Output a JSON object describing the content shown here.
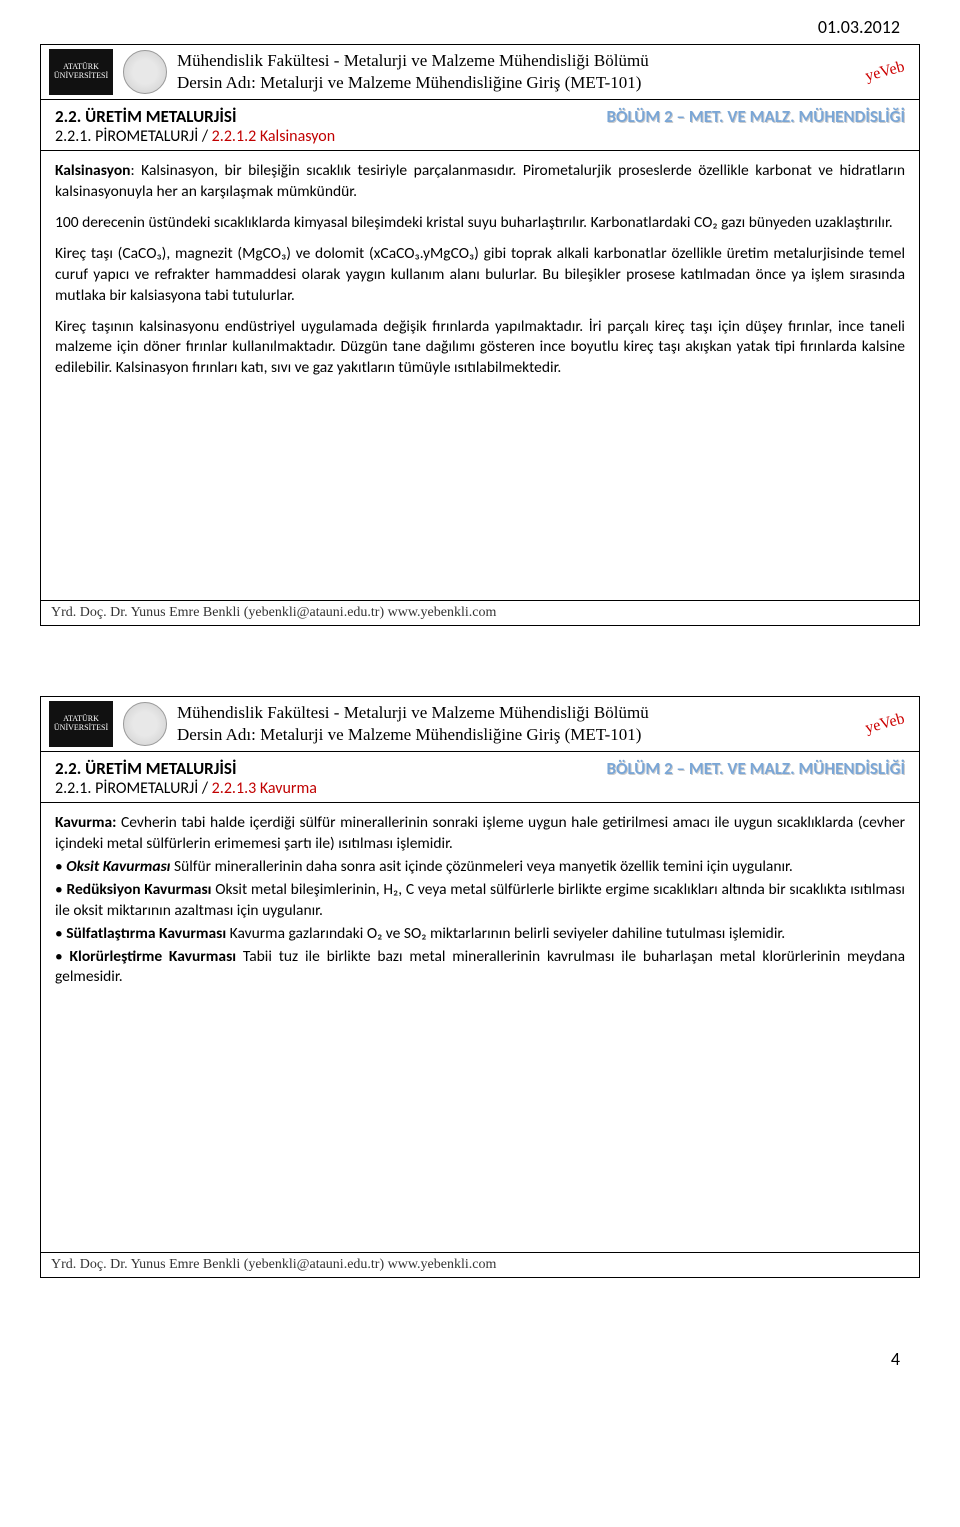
{
  "date": "01.03.2012",
  "page_number": "4",
  "header": {
    "logo_text": "ATATÜRK\nÜNİVERSİTESİ",
    "line1": "Mühendislik Fakültesi - Metalurji ve Malzeme Mühendisliği Bölümü",
    "line2": "Dersin Adı: Metalurji ve Malzeme Mühendisliğine Giriş (MET-101)",
    "yeveb": "yeVeb"
  },
  "footer": "Yrd. Doç. Dr. Yunus Emre Benkli (yebenkli@atauni.edu.tr) www.yebenkli.com",
  "slide1": {
    "title_left": "2.2. ÜRETİM METALURJİSİ",
    "title_right": "BÖLÜM 2 – MET. VE MALZ. MÜHENDİSLİĞİ",
    "subtitle_black": "2.2.1. PİROMETALURJİ / ",
    "subtitle_red": "2.2.1.2 Kalsinasyon",
    "p1_bold": "Kalsinasyon",
    "p1_rest": ": Kalsinasyon, bir bileşiğin sıcaklık tesiriyle parçalanmasıdır. Pirometalurjik proseslerde özellikle karbonat ve hidratların kalsinasyonuyla her an karşılaşmak mümkündür.",
    "p2": "100 derecenin üstündeki sıcaklıklarda kimyasal bileşimdeki kristal suyu buharlaştırılır. Karbonatlardaki CO₂ gazı bünyeden uzaklaştırılır.",
    "p3": "Kireç taşı (CaCO₃), magnezit (MgCO₃) ve dolomit (xCaCO₃.yMgCO₃) gibi toprak alkali karbonatlar özellikle üretim metalurjisinde temel curuf yapıcı ve refrakter hammaddesi olarak yaygın kullanım alanı bulurlar. Bu bileşikler prosese katılmadan önce ya işlem sırasında mutlaka bir kalsiasyona tabi tutulurlar.",
    "p4": "Kireç taşının kalsinasyonu endüstriyel uygulamada değişik fırınlarda yapılmaktadır. İri parçalı kireç taşı için düşey fırınlar, ince taneli malzeme için döner fırınlar kullanılmaktadır. Düzgün tane dağılımı gösteren ince boyutlu kireç taşı akışkan yatak tipi fırınlarda kalsine edilebilir. Kalsinasyon fırınları katı, sıvı ve gaz yakıtların tümüyle ısıtılabilmektedir."
  },
  "slide2": {
    "title_left": "2.2. ÜRETİM METALURJİSİ",
    "title_right": "BÖLÜM 2 – MET. VE MALZ. MÜHENDİSLİĞİ",
    "subtitle_black": "2.2.1. PİROMETALURJİ / ",
    "subtitle_red": "2.2.1.3 Kavurma",
    "p1_bold": "Kavurma:",
    "p1_rest": " Cevherin tabi halde içerdiği sülfür minerallerinin sonraki işleme uygun hale getirilmesi amacı ile uygun sıcaklıklarda (cevher içindeki metal sülfürlerin erimemesi şartı ile) ısıtılması işlemidir.",
    "b1_bold": "Oksit Kavurması",
    "b1_rest": " Sülfür minerallerinin daha sonra asit içinde çözünmeleri veya manyetik özellik temini için uygulanır.",
    "b2_bold": "Redüksiyon Kavurması",
    "b2_rest": " Oksit metal bileşimlerinin, H₂, C veya metal sülfürlerle birlikte ergime sıcaklıkları altında bir sıcaklıkta ısıtılması ile oksit miktarının azaltması için uygulanır.",
    "b3_bold": "Sülfatlaştırma Kavurması",
    "b3_rest": " Kavurma gazlarındaki O₂ ve SO₂ miktarlarının belirli seviyeler dahiline tutulması işlemidir.",
    "b4_bold": "Klorürleştirme Kavurması",
    "b4_rest": " Tabii tuz ile birlikte bazı metal minerallerinin kavrulması ile buharlaşan metal klorürlerinin meydana gelmesidir."
  }
}
